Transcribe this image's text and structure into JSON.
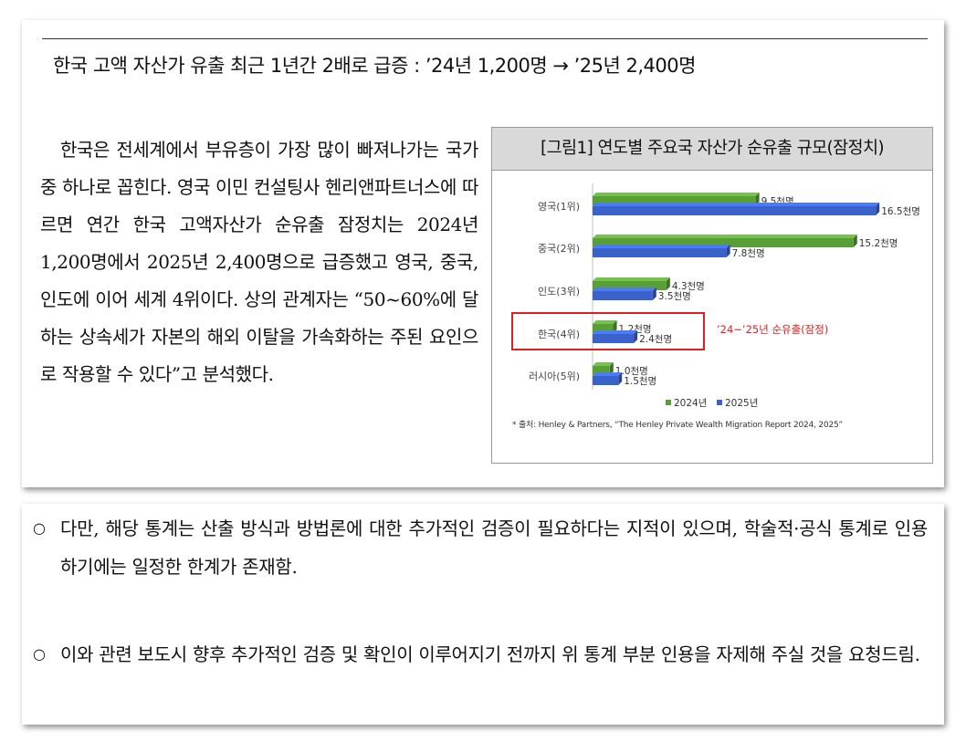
{
  "headline": "한국 고액 자산가 유출 최근 1년간 2배로 급증 : ’24년 1,200명 → ’25년 2,400명",
  "body_paragraph": "한국은 전세계에서 부유층이 가장 많이 빠져나가는 국가 중 하나로 꼽힌다. 영국 이민 컨설팅사 헨리앤파트너스에 따르면 연간 한국 고액자산가 순유출 잠정치는 2024년 1,200명에서 2025년 2,400명으로 급증했고 영국, 중국, 인도에 이어 세계 4위이다. 상의 관계자는 “50~60%에 달하는 상속세가 자본의 해외 이탈을 가속화하는 주된 요인으로 작용할 수 있다”고 분석했다.",
  "figure": {
    "title": "[그림1] 연도별 주요국 자산가 순유출 규모(잠정치)",
    "source": "* 출처: Henley & Partners, “The Henley Private Wealth Migration Report 2024, 2025”"
  },
  "chart_data": {
    "type": "bar",
    "orientation": "horizontal",
    "categories": [
      "영국(1위)",
      "중국(2위)",
      "인도(3위)",
      "한국(4위)",
      "러시아(5위)"
    ],
    "series": [
      {
        "name": "2024년",
        "color": "#5a9e3a",
        "values": [
          9.5,
          15.2,
          4.3,
          1.2,
          1.0
        ],
        "labels": [
          "9.5천명",
          "15.2천명",
          "4.3천명",
          "1.2천명",
          "1.0천명"
        ]
      },
      {
        "name": "2025년",
        "color": "#3a62c9",
        "values": [
          16.5,
          7.8,
          3.5,
          2.4,
          1.5
        ],
        "labels": [
          "16.5천명",
          "7.8천명",
          "3.5천명",
          "2.4천명",
          "1.5천명"
        ]
      }
    ],
    "unit": "천명",
    "highlight": {
      "category": "한국(4위)",
      "annotation": "’24~’25년 순유출(잠정)",
      "color": "#e02020"
    },
    "legend_position": "bottom-center",
    "grid": false
  },
  "notes": [
    "다만, 해당 통계는 산출 방식과 방법론에 대한 추가적인 검증이 필요하다는 지적이 있으며, 학술적·공식 통계로 인용하기에는 일정한 한계가 존재함.",
    "이와 관련 보도시 향후 추가적인 검증 및 확인이 이루어지기 전까지 위 통계 부분 인용을 자제해 주실 것을 요청드림."
  ],
  "bullet_mark": "○"
}
